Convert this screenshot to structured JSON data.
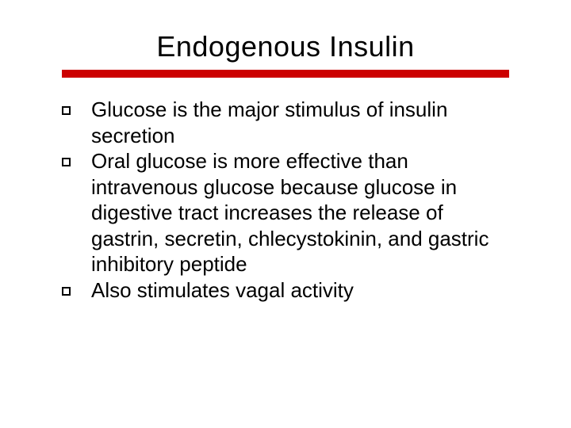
{
  "slide": {
    "title": "Endogenous Insulin",
    "title_fontsize": 36,
    "title_color": "#000000",
    "underline_color": "#cc0000",
    "underline_height": 10,
    "background_color": "#ffffff",
    "bullet_marker_style": "hollow-square",
    "bullet_marker_border_color": "#000000",
    "body_fontsize": 26,
    "body_color": "#000000",
    "bullets": [
      "Glucose is the major stimulus of insulin secretion",
      "Oral glucose is more effective than intravenous glucose because glucose in digestive tract increases the release of gastrin, secretin, chlecystokinin, and gastric inhibitory peptide",
      "Also stimulates vagal activity"
    ]
  }
}
